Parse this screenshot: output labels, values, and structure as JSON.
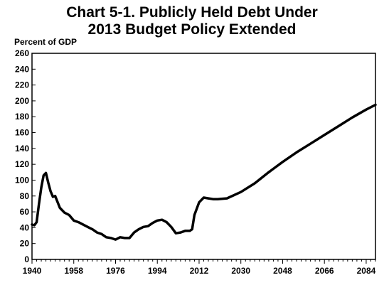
{
  "chart_data": {
    "type": "line",
    "title_line1": "Chart 5-1.  Publicly Held Debt Under",
    "title_line2": "2013 Budget Policy Extended",
    "ylabel": "Percent of GDP",
    "xlabel": "",
    "ylim": [
      0,
      260
    ],
    "xlim": [
      1940,
      2088
    ],
    "y_ticks": [
      0,
      20,
      40,
      60,
      80,
      100,
      120,
      140,
      160,
      180,
      200,
      220,
      240,
      260
    ],
    "x_ticks": [
      1940,
      1958,
      1976,
      1994,
      2012,
      2030,
      2048,
      2066,
      2084
    ],
    "grid": false,
    "series": [
      {
        "color": "#000000",
        "x": [
          1940,
          1941,
          1942,
          1943,
          1944,
          1945,
          1946,
          1947,
          1948,
          1949,
          1950,
          1952,
          1954,
          1956,
          1958,
          1960,
          1962,
          1964,
          1966,
          1968,
          1970,
          1972,
          1974,
          1976,
          1978,
          1980,
          1982,
          1984,
          1986,
          1988,
          1990,
          1992,
          1994,
          1996,
          1998,
          2000,
          2002,
          2004,
          2006,
          2008,
          2009,
          2010,
          2012,
          2014,
          2016,
          2018,
          2020,
          2024,
          2030,
          2036,
          2042,
          2048,
          2054,
          2060,
          2066,
          2072,
          2078,
          2084,
          2088
        ],
        "values": [
          44,
          43,
          47,
          70,
          91,
          106,
          109,
          97,
          86,
          79,
          80,
          65,
          59,
          56,
          49,
          47,
          44,
          41,
          38,
          34,
          32,
          28,
          27,
          25,
          28,
          27,
          27,
          34,
          38,
          41,
          42,
          46,
          49,
          50,
          47,
          41,
          33,
          34,
          36,
          36,
          38,
          56,
          72,
          78,
          77,
          76,
          76,
          77,
          85,
          96,
          110,
          123,
          135,
          146,
          157,
          168,
          179,
          189,
          195
        ]
      }
    ]
  }
}
